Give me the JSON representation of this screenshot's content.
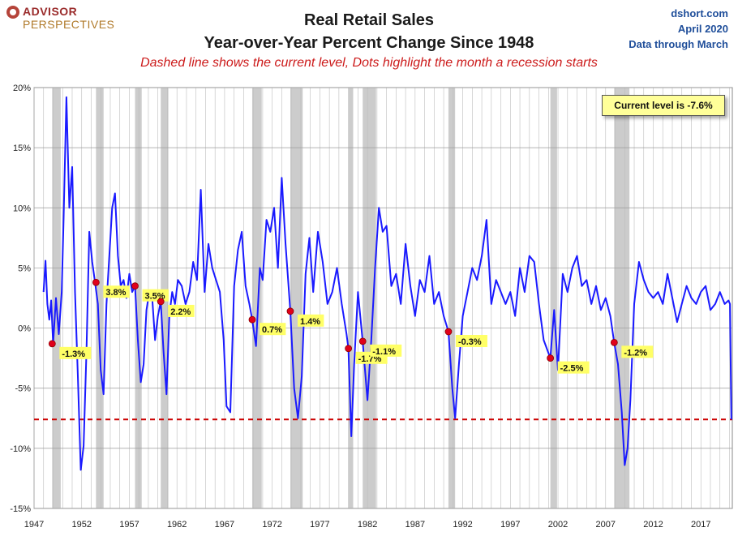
{
  "logo": {
    "line1": "ADVISOR",
    "line2": "PERSPECTIVES"
  },
  "header": {
    "title_line1": "Real Retail Sales",
    "title_line2": "Year-over-Year Percent Change Since 1948",
    "subtitle": "Dashed line shows the current level, Dots highlight the month a recession starts"
  },
  "source": {
    "site": "dshort.com",
    "date": "April 2020",
    "through": "Data through March"
  },
  "colors": {
    "line": "#1a1aff",
    "dashed": "#cc0000",
    "recession": "#cccccc",
    "dot": "#e0001a",
    "label_bg": "#ffff66"
  },
  "chart_data": {
    "type": "line",
    "title": "Real Retail Sales Year-over-Year Percent Change Since 1948",
    "xlabel": "",
    "ylabel": "",
    "xlim": [
      1947,
      2020.3
    ],
    "ylim": [
      -15,
      20
    ],
    "y_ticks": [
      20,
      15,
      10,
      5,
      0,
      -5,
      -10,
      -15
    ],
    "y_tick_labels": [
      "20%",
      "15%",
      "10%",
      "5%",
      "0%",
      "-5%",
      "-10%",
      "-15%"
    ],
    "x_ticks": [
      1947,
      1952,
      1957,
      1962,
      1967,
      1972,
      1977,
      1982,
      1987,
      1992,
      1997,
      2002,
      2007,
      2012,
      2017
    ],
    "x_tick_labels": [
      "1947",
      "1952",
      "1957",
      "1962",
      "1967",
      "1972",
      "1977",
      "1982",
      "1987",
      "1992",
      "1997",
      "2002",
      "2007",
      "2012",
      "2017"
    ],
    "current_level": -7.6,
    "current_level_label": "Current level is -7.6%",
    "recessions": [
      [
        1948.9,
        1949.8
      ],
      [
        1953.5,
        1954.3
      ],
      [
        1957.6,
        1958.3
      ],
      [
        1960.3,
        1961.1
      ],
      [
        1969.9,
        1970.9
      ],
      [
        1973.9,
        1975.2
      ],
      [
        1980.0,
        1980.5
      ],
      [
        1981.5,
        1982.9
      ],
      [
        1990.5,
        1991.2
      ],
      [
        2001.2,
        2001.9
      ],
      [
        2007.9,
        2009.5
      ]
    ],
    "recession_starts": [
      {
        "x": 1948.9,
        "y": -1.3,
        "label": "-1.3%"
      },
      {
        "x": 1953.5,
        "y": 3.8,
        "label": "3.8%"
      },
      {
        "x": 1957.6,
        "y": 3.5,
        "label": "3.5%"
      },
      {
        "x": 1960.3,
        "y": 2.2,
        "label": "2.2%"
      },
      {
        "x": 1969.9,
        "y": 0.7,
        "label": "0.7%"
      },
      {
        "x": 1973.9,
        "y": 1.4,
        "label": "1.4%"
      },
      {
        "x": 1980.0,
        "y": -1.7,
        "label": "-1.7%"
      },
      {
        "x": 1981.5,
        "y": -1.1,
        "label": "-1.1%"
      },
      {
        "x": 1990.5,
        "y": -0.3,
        "label": "-0.3%"
      },
      {
        "x": 2001.2,
        "y": -2.5,
        "label": "-2.5%"
      },
      {
        "x": 2007.9,
        "y": -1.2,
        "label": "-1.2%"
      }
    ],
    "series": [
      {
        "name": "Real Retail Sales YoY %",
        "x": [
          1948.0,
          1948.2,
          1948.4,
          1948.6,
          1948.8,
          1949.0,
          1949.3,
          1949.6,
          1949.9,
          1950.1,
          1950.4,
          1950.7,
          1951.0,
          1951.3,
          1951.6,
          1951.9,
          1952.2,
          1952.5,
          1952.8,
          1953.1,
          1953.4,
          1953.7,
          1954.0,
          1954.3,
          1954.6,
          1954.9,
          1955.2,
          1955.5,
          1955.8,
          1956.1,
          1956.4,
          1956.7,
          1957.0,
          1957.3,
          1957.6,
          1957.9,
          1958.2,
          1958.5,
          1958.8,
          1959.1,
          1959.4,
          1959.7,
          1960.0,
          1960.3,
          1960.6,
          1960.9,
          1961.2,
          1961.5,
          1961.8,
          1962.1,
          1962.5,
          1962.9,
          1963.3,
          1963.7,
          1964.1,
          1964.5,
          1964.9,
          1965.3,
          1965.7,
          1966.1,
          1966.5,
          1966.9,
          1967.2,
          1967.6,
          1968.0,
          1968.4,
          1968.8,
          1969.2,
          1969.6,
          1969.9,
          1970.3,
          1970.7,
          1971.0,
          1971.4,
          1971.8,
          1972.2,
          1972.6,
          1973.0,
          1973.4,
          1973.9,
          1974.3,
          1974.7,
          1975.1,
          1975.5,
          1975.9,
          1976.3,
          1976.8,
          1977.3,
          1977.8,
          1978.3,
          1978.8,
          1979.3,
          1979.8,
          1980.0,
          1980.3,
          1980.6,
          1981.0,
          1981.5,
          1982.0,
          1982.4,
          1982.8,
          1983.2,
          1983.6,
          1984.0,
          1984.5,
          1985.0,
          1985.5,
          1986.0,
          1986.5,
          1987.0,
          1987.5,
          1988.0,
          1988.5,
          1989.0,
          1989.5,
          1990.0,
          1990.5,
          1990.9,
          1991.2,
          1991.6,
          1992.0,
          1992.5,
          1993.0,
          1993.5,
          1994.0,
          1994.5,
          1995.0,
          1995.5,
          1996.0,
          1996.5,
          1997.0,
          1997.5,
          1998.0,
          1998.5,
          1999.0,
          1999.5,
          2000.0,
          2000.5,
          2001.2,
          2001.6,
          2002.0,
          2002.5,
          2003.0,
          2003.5,
          2004.0,
          2004.5,
          2005.0,
          2005.5,
          2006.0,
          2006.5,
          2007.0,
          2007.5,
          2007.9,
          2008.3,
          2008.7,
          2009.0,
          2009.3,
          2009.6,
          2010.0,
          2010.5,
          2011.0,
          2011.5,
          2012.0,
          2012.5,
          2013.0,
          2013.5,
          2014.0,
          2014.5,
          2015.0,
          2015.5,
          2016.0,
          2016.5,
          2017.0,
          2017.5,
          2018.0,
          2018.5,
          2019.0,
          2019.5,
          2019.9,
          2020.05,
          2020.2
        ],
        "values": [
          3.0,
          5.6,
          2.0,
          0.7,
          2.3,
          -1.3,
          2.5,
          -0.5,
          3.0,
          9.0,
          19.2,
          10.0,
          13.4,
          3.0,
          -4.0,
          -11.8,
          -9.8,
          -2.0,
          8.0,
          5.5,
          3.8,
          2.0,
          -3.5,
          -5.5,
          2.0,
          6.0,
          10.0,
          11.2,
          6.0,
          3.5,
          4.0,
          2.5,
          4.5,
          3.0,
          3.5,
          -1.0,
          -4.5,
          -3.0,
          1.5,
          3.0,
          2.5,
          -1.0,
          1.0,
          2.2,
          -2.0,
          -5.5,
          1.0,
          3.0,
          2.0,
          4.0,
          3.5,
          2.0,
          3.0,
          5.5,
          4.0,
          11.5,
          3.0,
          7.0,
          5.0,
          4.0,
          3.0,
          -1.0,
          -6.5,
          -7.0,
          3.5,
          6.5,
          8.0,
          3.5,
          2.0,
          0.7,
          -1.5,
          5.0,
          4.0,
          9.0,
          8.0,
          10.0,
          5.0,
          12.5,
          7.0,
          1.4,
          -5.0,
          -7.5,
          -4.0,
          4.5,
          7.5,
          3.0,
          8.0,
          5.5,
          2.0,
          3.0,
          5.0,
          2.0,
          -0.5,
          -1.7,
          -9.0,
          -3.0,
          3.0,
          -1.1,
          -6.0,
          -1.0,
          5.0,
          10.0,
          8.0,
          8.5,
          3.5,
          4.5,
          2.0,
          7.0,
          3.5,
          1.0,
          4.0,
          3.0,
          6.0,
          2.0,
          3.0,
          1.0,
          -0.3,
          -5.0,
          -7.5,
          -3.0,
          1.0,
          3.0,
          5.0,
          4.0,
          6.0,
          9.0,
          2.0,
          4.0,
          3.0,
          2.0,
          3.0,
          1.0,
          5.0,
          3.0,
          6.0,
          5.5,
          2.0,
          -1.0,
          -2.5,
          1.5,
          -3.5,
          4.5,
          3.0,
          5.0,
          6.0,
          3.5,
          4.0,
          2.0,
          3.5,
          1.5,
          2.5,
          1.0,
          -1.2,
          -3.0,
          -7.0,
          -11.4,
          -10.0,
          -6.0,
          2.0,
          5.5,
          4.0,
          3.0,
          2.5,
          3.0,
          2.0,
          4.5,
          2.5,
          0.5,
          2.0,
          3.5,
          2.5,
          2.0,
          3.0,
          3.5,
          1.5,
          2.0,
          3.0,
          2.0,
          2.3,
          2.0,
          -7.6
        ]
      }
    ]
  }
}
